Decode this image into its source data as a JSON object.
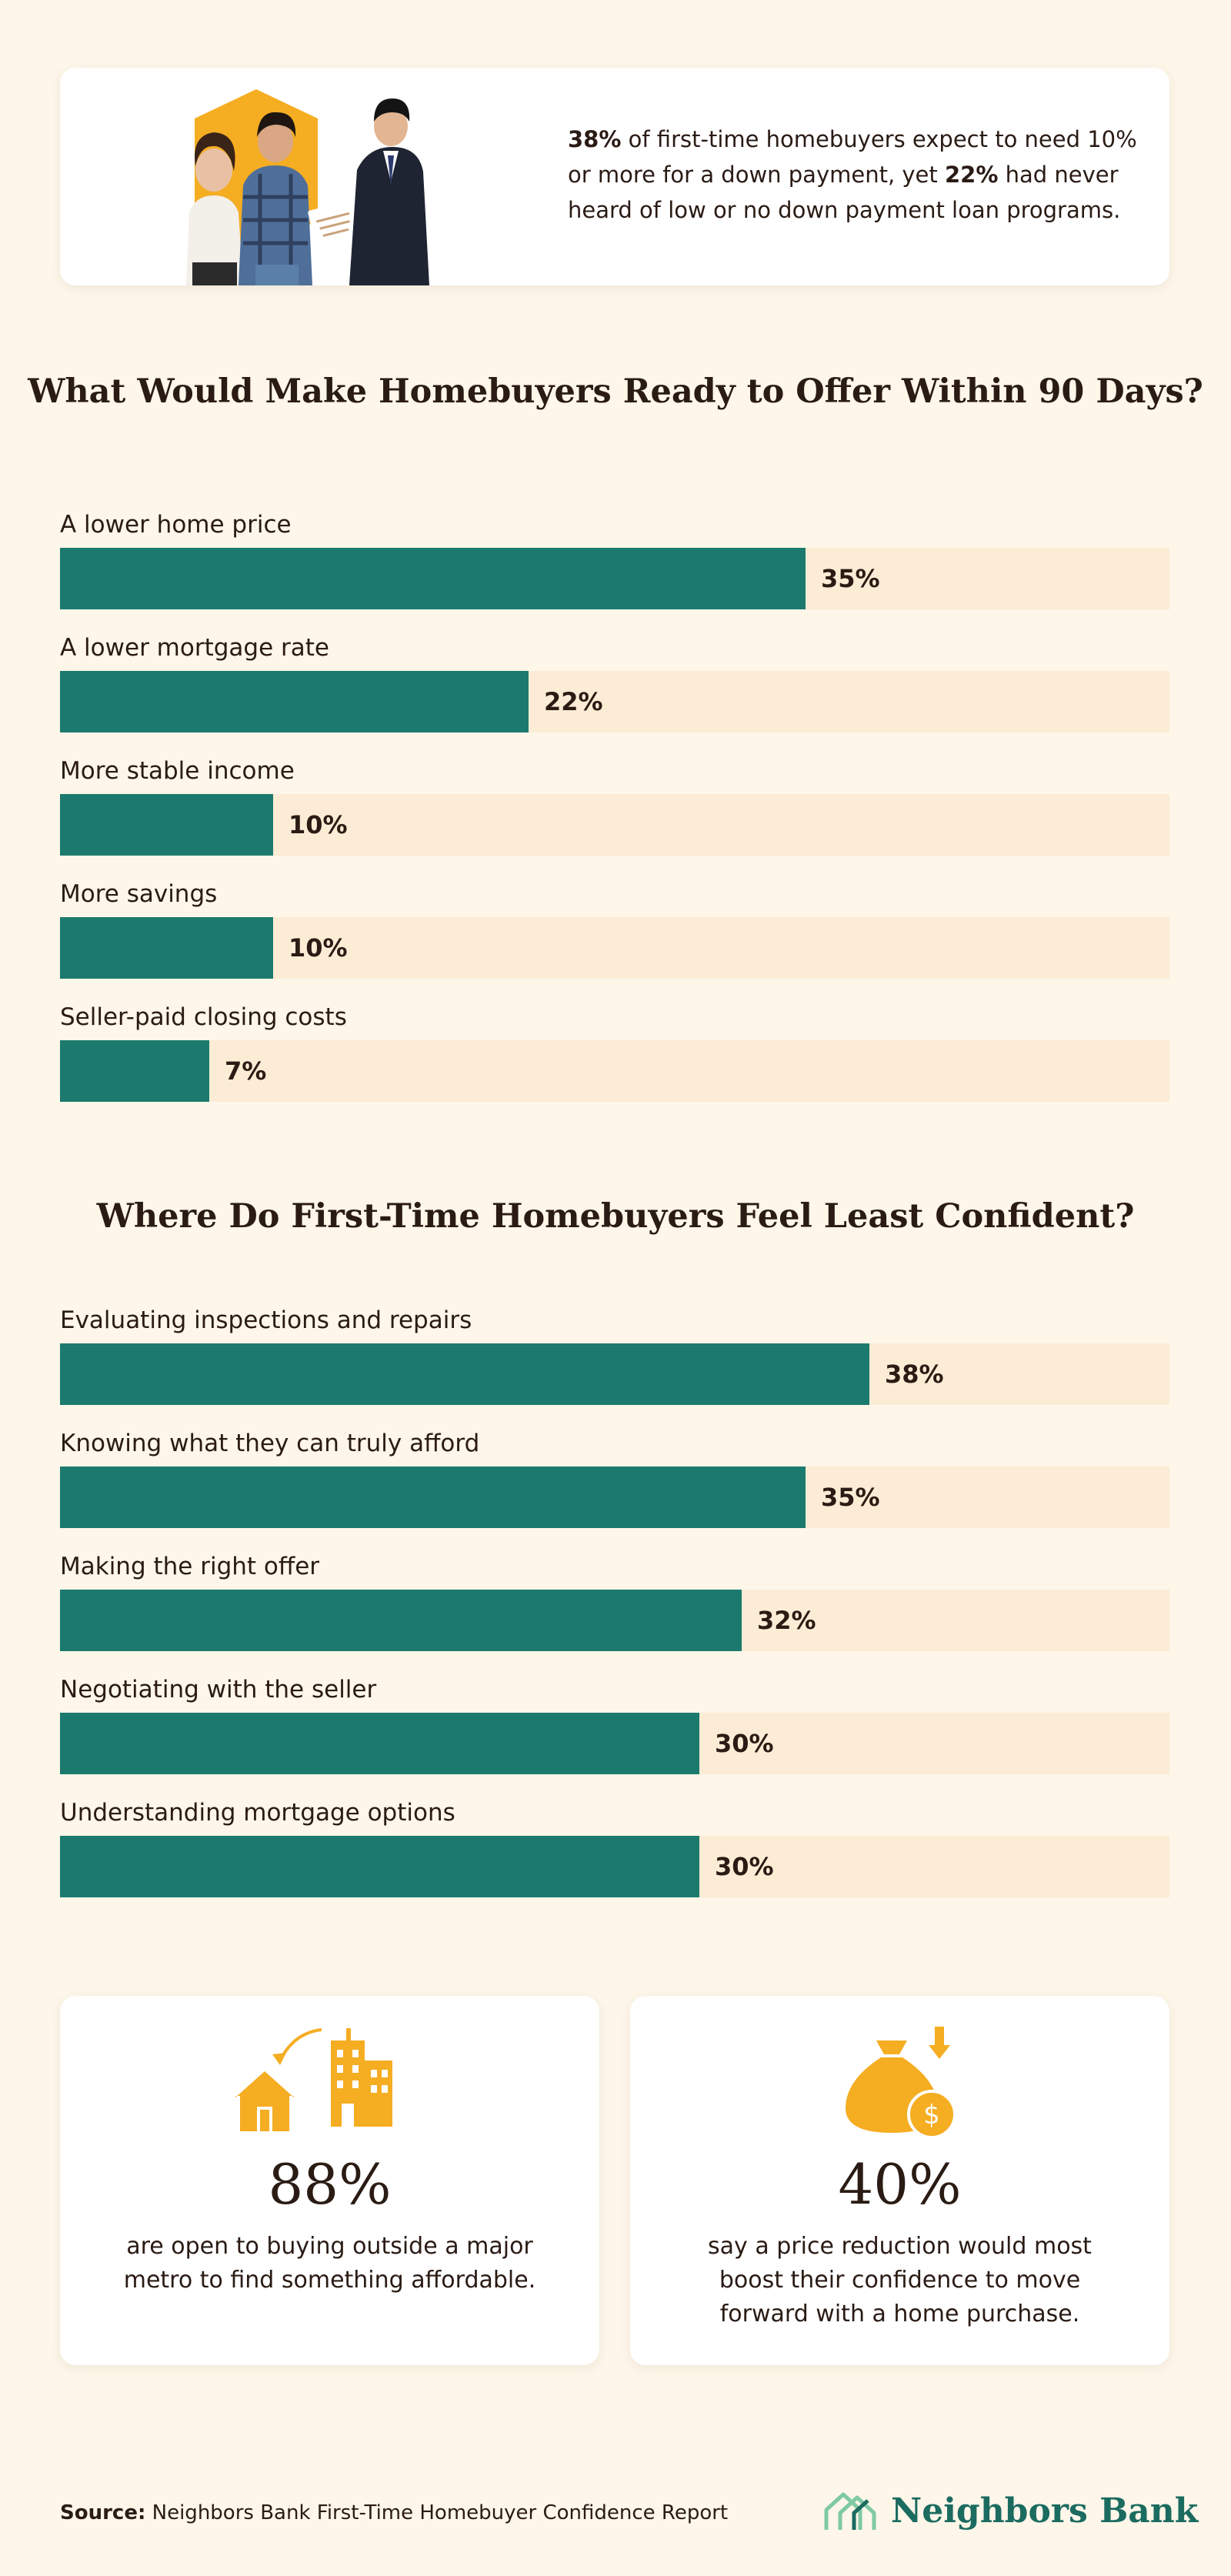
{
  "intro": {
    "stat1": "38%",
    "text1": " of first-time homebuyers expect to need 10% or more for a down payment, yet ",
    "stat2": "22%",
    "text2": " had never heard of low or no down payment loan programs."
  },
  "colors": {
    "bar_fill": "#1b7a6d",
    "bar_track": "#fcecd5",
    "accent": "#f5ad22",
    "background": "#fdf6e9",
    "brand": "#1b6b60"
  },
  "chart_data": [
    {
      "type": "bar",
      "orientation": "horizontal",
      "title": "What Would Make Homebuyers Ready to Offer Within 90 Days?",
      "categories": [
        "A lower home price",
        "A lower mortgage rate",
        "More stable income",
        "More savings",
        "Seller-paid closing costs"
      ],
      "values": [
        35,
        22,
        10,
        10,
        7
      ],
      "value_labels": [
        "35%",
        "22%",
        "10%",
        "10%",
        "7%"
      ],
      "unit": "%",
      "xlim": [
        0,
        100
      ]
    },
    {
      "type": "bar",
      "orientation": "horizontal",
      "title": "Where Do First-Time Homebuyers Feel Least Confident?",
      "categories": [
        "Evaluating inspections and repairs",
        "Knowing what they can truly afford",
        "Making the right offer",
        "Negotiating with the seller",
        "Understanding mortgage options"
      ],
      "values": [
        38,
        35,
        32,
        30,
        30
      ],
      "value_labels": [
        "38%",
        "35%",
        "32%",
        "30%",
        "30%"
      ],
      "unit": "%",
      "xlim": [
        0,
        100
      ]
    }
  ],
  "stats": [
    {
      "icon": "house-and-city-icon",
      "value": "88%",
      "description": "are open to buying outside a major metro to find something affordable."
    },
    {
      "icon": "money-bag-price-drop-icon",
      "value": "40%",
      "description": "say a price reduction would most boost their confidence to move forward with a home purchase."
    }
  ],
  "footer": {
    "source_label": "Source:",
    "source_text": " Neighbors Bank First-Time Homebuyer Confidence Report",
    "brand_name": "Neighbors Bank",
    "brand_icon": "house-logo-icon"
  }
}
